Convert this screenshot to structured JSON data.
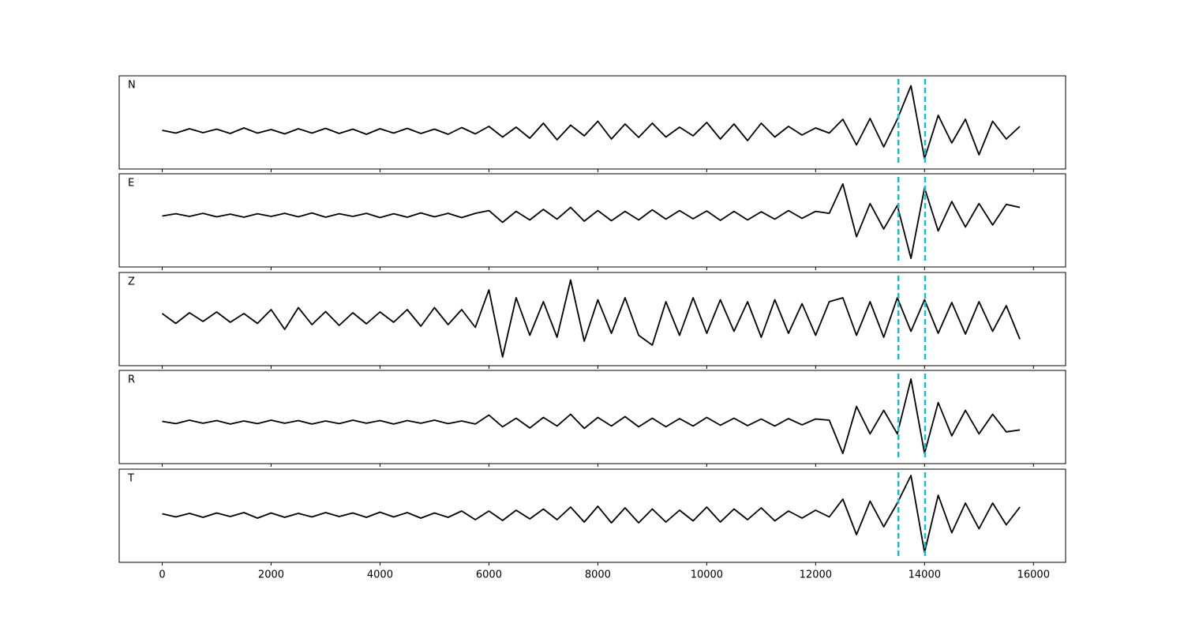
{
  "chart_data": [
    {
      "type": "line",
      "label": "N",
      "color": "#000000",
      "marker_color": "#17becf",
      "markers": [
        13520,
        14010
      ],
      "xlim": [
        -790,
        16590
      ],
      "ylim": [
        -0.96,
        1.4
      ],
      "xticks": [
        0,
        2000,
        4000,
        6000,
        8000,
        10000,
        12000,
        14000,
        16000
      ],
      "xtick_labels": false,
      "x": [
        0,
        250,
        500,
        750,
        1000,
        1250,
        1500,
        1750,
        2000,
        2250,
        2500,
        2750,
        3000,
        3250,
        3500,
        3750,
        4000,
        4250,
        4500,
        4750,
        5000,
        5250,
        5500,
        5750,
        6000,
        6250,
        6500,
        6750,
        7000,
        7250,
        7500,
        7750,
        8000,
        8250,
        8500,
        8750,
        9000,
        9250,
        9500,
        9750,
        10000,
        10250,
        10500,
        10750,
        11000,
        11250,
        11500,
        11750,
        12000,
        12250,
        12500,
        12750,
        13000,
        13250,
        13500,
        13750,
        14000,
        14250,
        14500,
        14750,
        15000,
        15250,
        15500,
        15750
      ],
      "values": [
        0.02,
        -0.05,
        0.06,
        -0.04,
        0.05,
        -0.06,
        0.08,
        -0.05,
        0.04,
        -0.07,
        0.06,
        -0.05,
        0.07,
        -0.06,
        0.05,
        -0.08,
        0.06,
        -0.05,
        0.07,
        -0.06,
        0.05,
        -0.08,
        0.09,
        -0.07,
        0.12,
        -0.15,
        0.1,
        -0.18,
        0.2,
        -0.22,
        0.15,
        -0.12,
        0.25,
        -0.2,
        0.18,
        -0.16,
        0.2,
        -0.15,
        0.1,
        -0.12,
        0.22,
        -0.2,
        0.18,
        -0.24,
        0.2,
        -0.15,
        0.12,
        -0.1,
        0.08,
        -0.05,
        0.3,
        -0.35,
        0.32,
        -0.4,
        0.3,
        1.15,
        -0.7,
        0.4,
        -0.3,
        0.3,
        -0.6,
        0.25,
        -0.2,
        0.12
      ]
    },
    {
      "type": "line",
      "label": "E",
      "color": "#000000",
      "marker_color": "#17becf",
      "markers": [
        13520,
        14010
      ],
      "xlim": [
        -790,
        16590
      ],
      "ylim": [
        -1.32,
        1.06
      ],
      "xticks": [
        0,
        2000,
        4000,
        6000,
        8000,
        10000,
        12000,
        14000,
        16000
      ],
      "xtick_labels": false,
      "x": [
        0,
        250,
        500,
        750,
        1000,
        1250,
        1500,
        1750,
        2000,
        2250,
        2500,
        2750,
        3000,
        3250,
        3500,
        3750,
        4000,
        4250,
        4500,
        4750,
        5000,
        5250,
        5500,
        5750,
        6000,
        6250,
        6500,
        6750,
        7000,
        7250,
        7500,
        7750,
        8000,
        8250,
        8500,
        8750,
        9000,
        9250,
        9500,
        9750,
        10000,
        10250,
        10500,
        10750,
        11000,
        11250,
        11500,
        11750,
        12000,
        12250,
        12500,
        12750,
        13000,
        13250,
        13500,
        13750,
        14000,
        14250,
        14500,
        14750,
        15000,
        15250,
        15500,
        15750
      ],
      "values": [
        -0.02,
        0.04,
        -0.03,
        0.05,
        -0.04,
        0.03,
        -0.05,
        0.04,
        -0.03,
        0.05,
        -0.04,
        0.06,
        -0.05,
        0.04,
        -0.03,
        0.05,
        -0.06,
        0.04,
        -0.05,
        0.06,
        -0.04,
        0.05,
        -0.06,
        0.05,
        0.12,
        -0.18,
        0.1,
        -0.12,
        0.15,
        -0.1,
        0.2,
        -0.15,
        0.12,
        -0.14,
        0.1,
        -0.12,
        0.14,
        -0.1,
        0.12,
        -0.09,
        0.11,
        -0.13,
        0.1,
        -0.12,
        0.09,
        -0.1,
        0.12,
        -0.08,
        0.1,
        0.05,
        0.8,
        -0.55,
        0.3,
        -0.35,
        0.25,
        -1.1,
        0.7,
        -0.4,
        0.35,
        -0.3,
        0.3,
        -0.25,
        0.28,
        0.2
      ]
    },
    {
      "type": "line",
      "label": "Z",
      "color": "#000000",
      "marker_color": "#17becf",
      "markers": [
        13520,
        14010
      ],
      "xlim": [
        -790,
        16590
      ],
      "ylim": [
        -1.22,
        1.14
      ],
      "xticks": [
        0,
        2000,
        4000,
        6000,
        8000,
        10000,
        12000,
        14000,
        16000
      ],
      "xtick_labels": false,
      "x": [
        0,
        250,
        500,
        750,
        1000,
        1250,
        1500,
        1750,
        2000,
        2250,
        2500,
        2750,
        3000,
        3250,
        3500,
        3750,
        4000,
        4250,
        4500,
        4750,
        5000,
        5250,
        5500,
        5750,
        6000,
        6250,
        6500,
        6750,
        7000,
        7250,
        7500,
        7750,
        8000,
        8250,
        8500,
        8750,
        9000,
        9250,
        9500,
        9750,
        10000,
        10250,
        10500,
        10750,
        11000,
        11250,
        11500,
        11750,
        12000,
        12250,
        12500,
        12750,
        13000,
        13250,
        13500,
        13750,
        14000,
        14250,
        14500,
        14750,
        15000,
        15250,
        15500,
        15750
      ],
      "values": [
        0.1,
        -0.15,
        0.12,
        -0.1,
        0.14,
        -0.12,
        0.1,
        -0.15,
        0.2,
        -0.3,
        0.25,
        -0.18,
        0.15,
        -0.2,
        0.12,
        -0.16,
        0.14,
        -0.12,
        0.2,
        -0.22,
        0.25,
        -0.18,
        0.2,
        -0.25,
        0.7,
        -1.0,
        0.5,
        -0.45,
        0.4,
        -0.5,
        0.95,
        -0.6,
        0.45,
        -0.4,
        0.5,
        -0.45,
        -0.7,
        0.4,
        -0.45,
        0.5,
        -0.4,
        0.45,
        -0.35,
        0.4,
        -0.5,
        0.45,
        -0.4,
        0.35,
        -0.45,
        0.4,
        0.5,
        -0.45,
        0.4,
        -0.5,
        0.5,
        -0.35,
        0.45,
        -0.4,
        0.38,
        -0.42,
        0.4,
        -0.35,
        0.3,
        -0.55
      ]
    },
    {
      "type": "line",
      "label": "R",
      "color": "#000000",
      "marker_color": "#17becf",
      "markers": [
        13520,
        14010
      ],
      "xlim": [
        -790,
        16590
      ],
      "ylim": [
        -1.06,
        1.32
      ],
      "xticks": [
        0,
        2000,
        4000,
        6000,
        8000,
        10000,
        12000,
        14000,
        16000
      ],
      "xtick_labels": false,
      "x": [
        0,
        250,
        500,
        750,
        1000,
        1250,
        1500,
        1750,
        2000,
        2250,
        2500,
        2750,
        3000,
        3250,
        3500,
        3750,
        4000,
        4250,
        4500,
        4750,
        5000,
        5250,
        5500,
        5750,
        6000,
        6250,
        6500,
        6750,
        7000,
        7250,
        7500,
        7750,
        8000,
        8250,
        8500,
        8750,
        9000,
        9250,
        9500,
        9750,
        10000,
        10250,
        10500,
        10750,
        11000,
        11250,
        11500,
        11750,
        12000,
        12250,
        12500,
        12750,
        13000,
        13250,
        13500,
        13750,
        14000,
        14250,
        14500,
        14750,
        15000,
        15250,
        15500,
        15750
      ],
      "values": [
        0.02,
        -0.04,
        0.05,
        -0.03,
        0.04,
        -0.05,
        0.03,
        -0.04,
        0.05,
        -0.03,
        0.04,
        -0.05,
        0.03,
        -0.04,
        0.05,
        -0.03,
        0.04,
        -0.05,
        0.04,
        -0.03,
        0.05,
        -0.04,
        0.03,
        -0.05,
        0.18,
        -0.12,
        0.1,
        -0.15,
        0.12,
        -0.1,
        0.2,
        -0.16,
        0.12,
        -0.1,
        0.14,
        -0.12,
        0.1,
        -0.12,
        0.09,
        -0.1,
        0.12,
        -0.08,
        0.1,
        -0.09,
        0.08,
        -0.1,
        0.09,
        -0.07,
        0.08,
        0.05,
        -0.8,
        0.4,
        -0.3,
        0.3,
        -0.3,
        1.1,
        -0.8,
        0.5,
        -0.35,
        0.3,
        -0.3,
        0.2,
        -0.25,
        -0.2
      ]
    },
    {
      "type": "line",
      "label": "T",
      "color": "#000000",
      "marker_color": "#17becf",
      "markers": [
        13520,
        14010
      ],
      "xlim": [
        -790,
        16590
      ],
      "ylim": [
        -1.2,
        1.16
      ],
      "xticks": [
        0,
        2000,
        4000,
        6000,
        8000,
        10000,
        12000,
        14000,
        16000
      ],
      "xtick_labels": true,
      "x": [
        0,
        250,
        500,
        750,
        1000,
        1250,
        1500,
        1750,
        2000,
        2250,
        2500,
        2750,
        3000,
        3250,
        3500,
        3750,
        4000,
        4250,
        4500,
        4750,
        5000,
        5250,
        5500,
        5750,
        6000,
        6250,
        6500,
        6750,
        7000,
        7250,
        7500,
        7750,
        8000,
        8250,
        8500,
        8750,
        9000,
        9250,
        9500,
        9750,
        10000,
        10250,
        10500,
        10750,
        11000,
        11250,
        11500,
        11750,
        12000,
        12250,
        12500,
        12750,
        13000,
        13250,
        13500,
        13750,
        14000,
        14250,
        14500,
        14750,
        15000,
        15250,
        15500,
        15750
      ],
      "values": [
        0.03,
        -0.05,
        0.04,
        -0.06,
        0.05,
        -0.04,
        0.06,
        -0.08,
        0.05,
        -0.06,
        0.04,
        -0.05,
        0.06,
        -0.04,
        0.05,
        -0.06,
        0.07,
        -0.05,
        0.06,
        -0.08,
        0.05,
        -0.06,
        0.1,
        -0.12,
        0.1,
        -0.14,
        0.12,
        -0.1,
        0.15,
        -0.12,
        0.2,
        -0.18,
        0.22,
        -0.2,
        0.18,
        -0.2,
        0.15,
        -0.18,
        0.12,
        -0.15,
        0.2,
        -0.18,
        0.15,
        -0.12,
        0.18,
        -0.15,
        0.1,
        -0.08,
        0.12,
        -0.05,
        0.4,
        -0.5,
        0.35,
        -0.3,
        0.3,
        1.0,
        -0.95,
        0.5,
        -0.45,
        0.3,
        -0.35,
        0.3,
        -0.25,
        0.2
      ]
    }
  ]
}
